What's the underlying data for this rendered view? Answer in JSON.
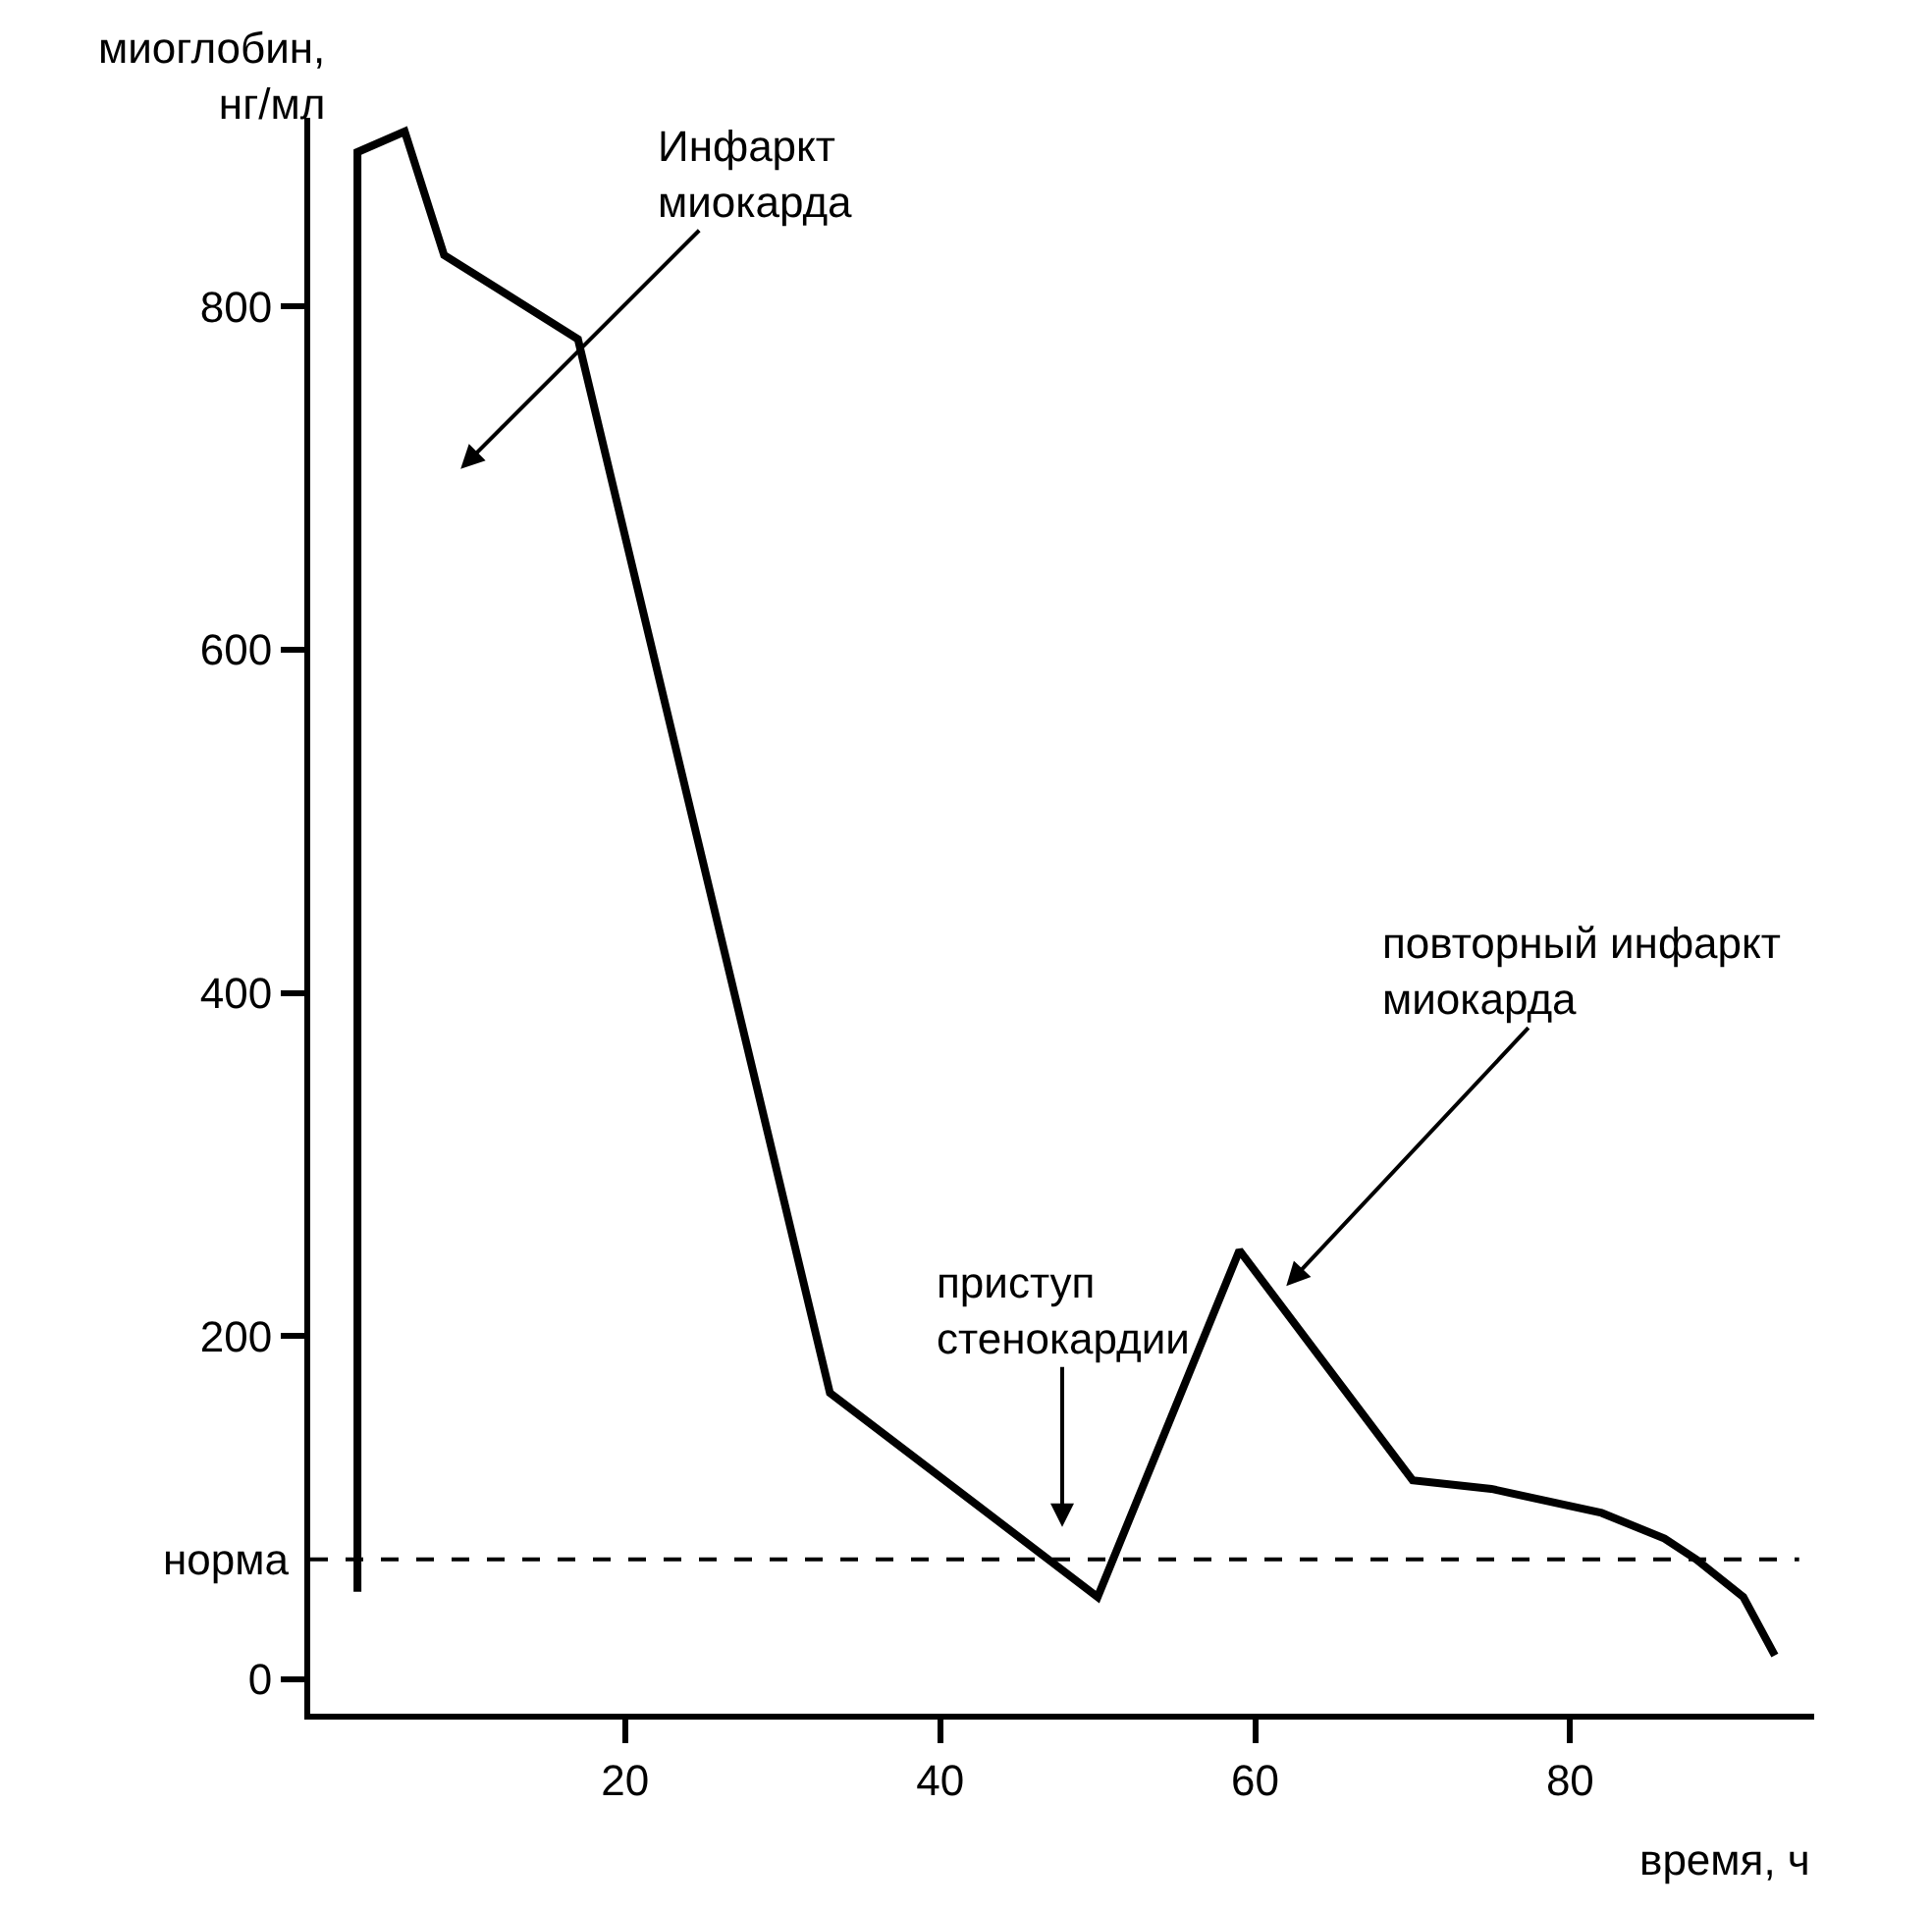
{
  "chart_data": {
    "type": "line",
    "ylabel": "миоглобин, нг/мл",
    "xlabel": "время, ч",
    "x": [
      3,
      3,
      6,
      8.5,
      17,
      33,
      50,
      59,
      70,
      75,
      82,
      86,
      88,
      91,
      93
    ],
    "series": [
      {
        "color": "#000000",
        "values": [
          51,
          890,
          902,
          830,
          781,
          167,
          48,
          250,
          116,
          111,
          97,
          82,
          70,
          48,
          14
        ]
      }
    ],
    "xlim": [
      0,
      95.5
    ],
    "xticks": [
      20,
      40,
      60,
      80
    ],
    "ylim": [
      -20,
      910
    ],
    "yticks": [
      0,
      200,
      400,
      600,
      800
    ],
    "grid": false,
    "marker": "none",
    "line_style": "solid",
    "ref_lines": [
      {
        "axis": "y",
        "value": 70,
        "label": "норма",
        "line_style": "dashed",
        "color": "#000000"
      }
    ],
    "annotations": [
      "Инфаркт\nмиокарда",
      "приступ\nстенокардии",
      "повторный инфаркт\nмиокарда"
    ]
  }
}
